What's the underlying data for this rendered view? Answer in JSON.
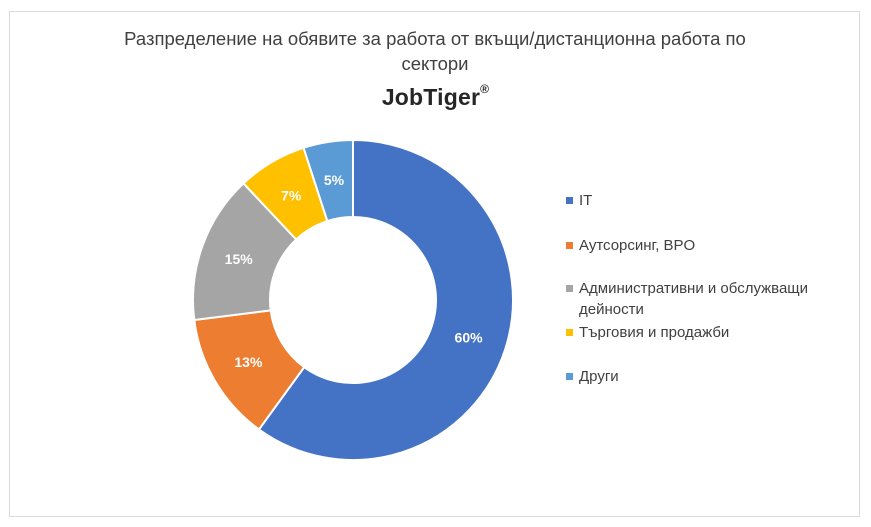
{
  "chart_data": {
    "type": "pie",
    "variant": "donut",
    "title": "Разпределение на обявите за работа от вкъщи/дистанционна работа по сектори",
    "logo_text": "JobTiger",
    "logo_mark": "®",
    "legend_position": "right",
    "slices": [
      {
        "label": "IT",
        "value": 60,
        "display": "60%",
        "color": "#4472C4"
      },
      {
        "label": "Аутсорсинг, BPO",
        "value": 13,
        "display": "13%",
        "color": "#ED7D31"
      },
      {
        "label": "Административни и обслужващи дейности",
        "value": 15,
        "display": "15%",
        "color": "#A5A5A5"
      },
      {
        "label": "Търговия и продажби",
        "value": 7,
        "display": "7%",
        "color": "#FFC000"
      },
      {
        "label": "Други",
        "value": 5,
        "display": "5%",
        "color": "#5B9BD5"
      }
    ]
  }
}
